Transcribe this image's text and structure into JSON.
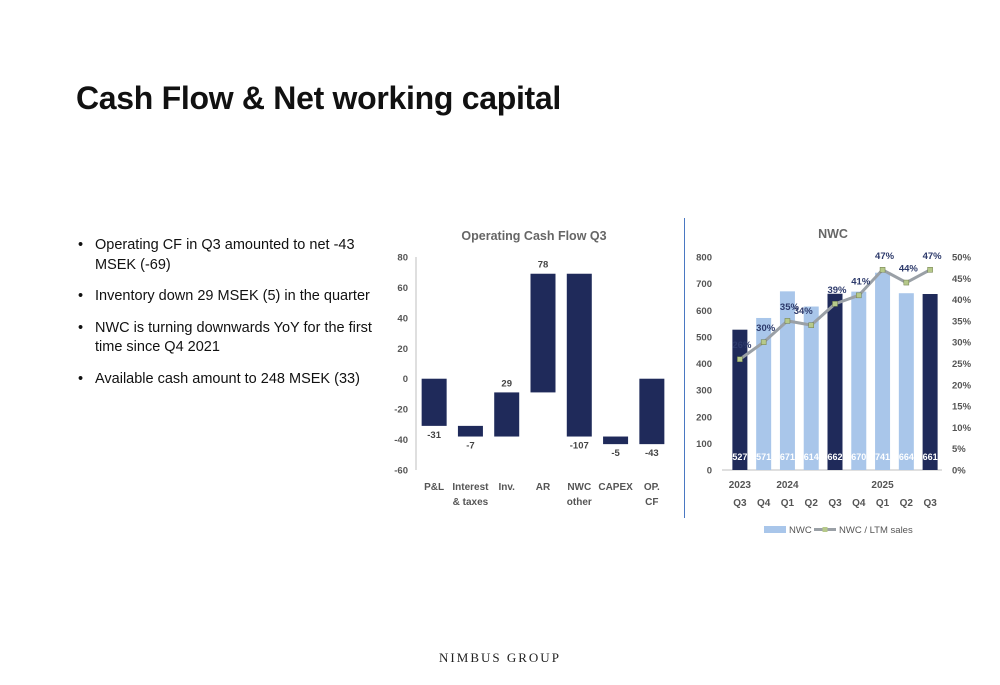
{
  "slide": {
    "title": "Cash Flow & Net working capital",
    "bullets": [
      "Operating CF in Q3 amounted to net -43 MSEK (-69)",
      "Inventory down 29 MSEK (5) in the quarter",
      "NWC is turning downwards YoY for the first time since Q4 2021",
      "Available cash amount to 248 MSEK (33)"
    ],
    "footer": "NIMBUS GROUP"
  },
  "colors": {
    "navy": "#1f2a5a",
    "light_blue": "#a9c6ea",
    "line_gray": "#9aa0a6",
    "marker_green": "#b6c98a"
  },
  "chart_data": [
    {
      "type": "bar",
      "subtype": "waterfall",
      "title": "Operating Cash Flow Q3",
      "categories": [
        "P&L",
        "Interest & taxes",
        "Inv.",
        "AR",
        "NWC other",
        "CAPEX",
        "OP. CF"
      ],
      "values": [
        -31,
        -7,
        29,
        78,
        -107,
        -5,
        -43
      ],
      "data_labels": [
        "-31",
        "-7",
        "29",
        "78",
        "-107",
        "-5",
        "-43"
      ],
      "ylim": [
        -60,
        80
      ],
      "yticks": [
        80,
        60,
        40,
        20,
        0,
        -20,
        -40,
        -60
      ],
      "grid": false
    },
    {
      "type": "bar",
      "subtype": "bar+line",
      "title": "NWC",
      "categories": [
        "Q3",
        "Q4",
        "Q1",
        "Q2",
        "Q3",
        "Q4",
        "Q1",
        "Q2",
        "Q3"
      ],
      "year_labels": [
        {
          "label": "2023",
          "index": 0
        },
        {
          "label": "2024",
          "index": 2
        },
        {
          "label": "2025",
          "index": 6
        }
      ],
      "series": [
        {
          "name": "NWC",
          "type": "bar",
          "values": [
            527,
            571,
            671,
            614,
            662,
            670,
            741,
            664,
            661
          ],
          "labels": [
            "527",
            "571",
            "671",
            "614",
            "662",
            "670",
            "741",
            "664",
            "661"
          ],
          "highlight": [
            true,
            false,
            false,
            false,
            true,
            false,
            false,
            false,
            true
          ]
        },
        {
          "name": "NWC / LTM sales",
          "type": "line",
          "axis": "right",
          "values": [
            26,
            30,
            35,
            34,
            39,
            41,
            47,
            44,
            47
          ],
          "labels": [
            "26%",
            "30%",
            "35%",
            "34%",
            "39%",
            "41%",
            "47%",
            "44%",
            "47%"
          ]
        }
      ],
      "ylim": [
        0,
        800
      ],
      "yticks": [
        0,
        100,
        200,
        300,
        400,
        500,
        600,
        700,
        800
      ],
      "y2lim": [
        0,
        50
      ],
      "y2ticks": [
        "0%",
        "5%",
        "10%",
        "15%",
        "20%",
        "25%",
        "30%",
        "35%",
        "40%",
        "45%",
        "50%"
      ],
      "legend": "bottom",
      "grid": false
    }
  ]
}
